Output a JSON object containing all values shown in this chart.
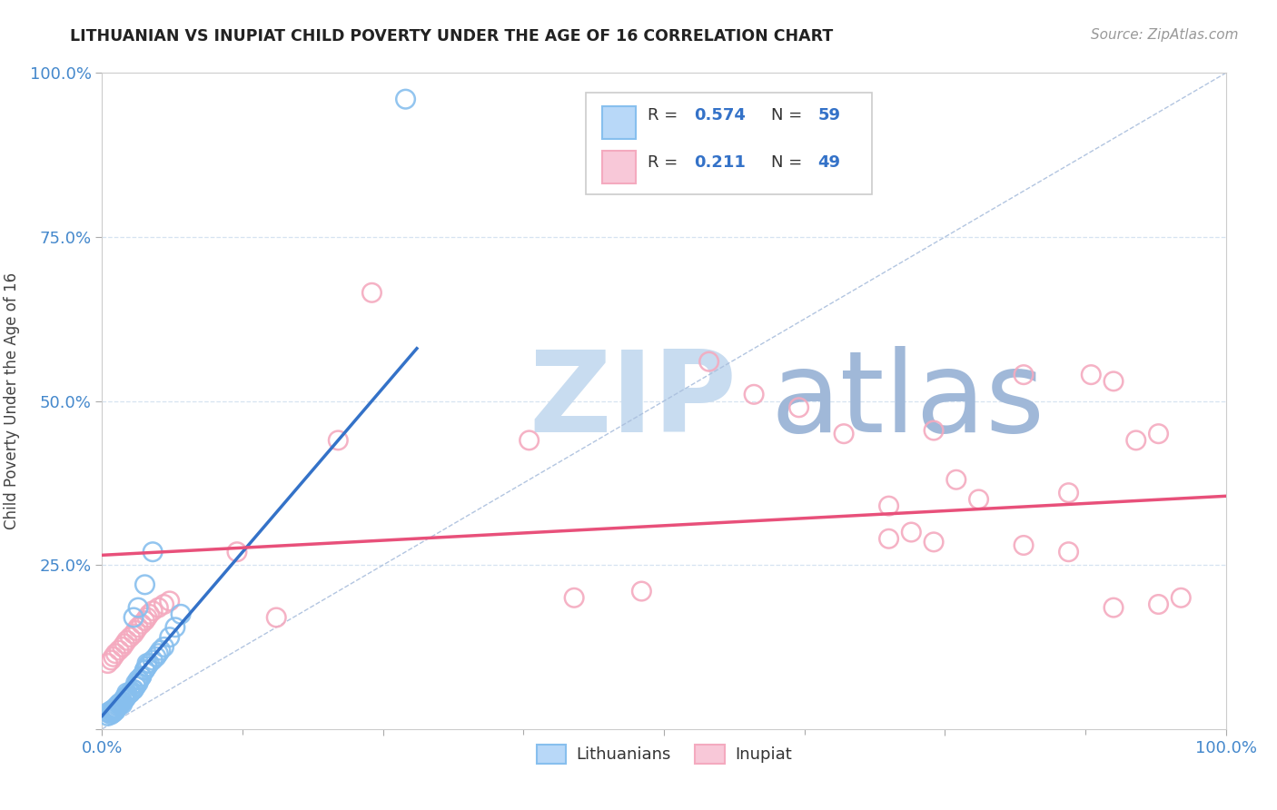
{
  "title": "LITHUANIAN VS INUPIAT CHILD POVERTY UNDER THE AGE OF 16 CORRELATION CHART",
  "source": "Source: ZipAtlas.com",
  "ylabel": "Child Poverty Under the Age of 16",
  "xlim": [
    0.0,
    1.0
  ],
  "ylim": [
    0.0,
    1.0
  ],
  "legend_labels": [
    "Lithuanians",
    "Inupiat"
  ],
  "R_blue": "0.574",
  "N_blue": "59",
  "R_pink": "0.211",
  "N_pink": "49",
  "blue_scatter_color": "#87BFEE",
  "pink_scatter_color": "#F4AABF",
  "blue_line_color": "#3472C8",
  "pink_line_color": "#E8507A",
  "diagonal_color": "#AABFDD",
  "grid_color": "#CCDDEE",
  "tick_color": "#4488CC",
  "watermark_zip": "ZIP",
  "watermark_atlas": "atlas",
  "watermark_color_zip": "#C8DCF0",
  "watermark_color_atlas": "#A0B8D8",
  "blue_x": [
    0.005,
    0.008,
    0.01,
    0.012,
    0.013,
    0.015,
    0.016,
    0.018,
    0.02,
    0.021,
    0.022,
    0.023,
    0.025,
    0.026,
    0.028,
    0.03,
    0.032,
    0.033,
    0.035,
    0.038,
    0.04,
    0.042,
    0.045,
    0.048,
    0.05,
    0.052,
    0.055,
    0.06,
    0.065,
    0.07,
    0.01,
    0.012,
    0.015,
    0.018,
    0.02,
    0.022,
    0.025,
    0.028,
    0.03,
    0.032,
    0.035,
    0.038,
    0.04,
    0.008,
    0.01,
    0.012,
    0.015,
    0.018,
    0.02,
    0.022,
    0.005,
    0.008,
    0.01,
    0.012,
    0.028,
    0.032,
    0.038,
    0.045,
    0.27
  ],
  "blue_y": [
    0.025,
    0.028,
    0.03,
    0.032,
    0.035,
    0.038,
    0.04,
    0.042,
    0.045,
    0.048,
    0.05,
    0.052,
    0.055,
    0.058,
    0.06,
    0.065,
    0.07,
    0.075,
    0.08,
    0.09,
    0.095,
    0.1,
    0.105,
    0.11,
    0.115,
    0.12,
    0.125,
    0.14,
    0.155,
    0.175,
    0.025,
    0.03,
    0.035,
    0.038,
    0.045,
    0.05,
    0.055,
    0.06,
    0.07,
    0.075,
    0.08,
    0.09,
    0.1,
    0.025,
    0.028,
    0.032,
    0.038,
    0.042,
    0.048,
    0.055,
    0.02,
    0.022,
    0.025,
    0.028,
    0.17,
    0.185,
    0.22,
    0.27,
    0.96
  ],
  "pink_x": [
    0.005,
    0.008,
    0.01,
    0.012,
    0.015,
    0.018,
    0.02,
    0.022,
    0.025,
    0.028,
    0.03,
    0.032,
    0.035,
    0.038,
    0.04,
    0.042,
    0.045,
    0.05,
    0.055,
    0.06,
    0.12,
    0.155,
    0.21,
    0.24,
    0.38,
    0.42,
    0.48,
    0.54,
    0.58,
    0.62,
    0.66,
    0.7,
    0.74,
    0.78,
    0.82,
    0.86,
    0.88,
    0.9,
    0.92,
    0.94,
    0.7,
    0.72,
    0.74,
    0.76,
    0.82,
    0.86,
    0.9,
    0.94,
    0.96
  ],
  "pink_y": [
    0.1,
    0.105,
    0.11,
    0.115,
    0.12,
    0.125,
    0.13,
    0.135,
    0.14,
    0.145,
    0.15,
    0.155,
    0.16,
    0.165,
    0.17,
    0.175,
    0.18,
    0.185,
    0.19,
    0.195,
    0.27,
    0.17,
    0.44,
    0.665,
    0.44,
    0.2,
    0.21,
    0.56,
    0.51,
    0.49,
    0.45,
    0.34,
    0.455,
    0.35,
    0.54,
    0.36,
    0.54,
    0.53,
    0.44,
    0.45,
    0.29,
    0.3,
    0.285,
    0.38,
    0.28,
    0.27,
    0.185,
    0.19,
    0.2
  ],
  "blue_line_x0": 0.0,
  "blue_line_y0": 0.02,
  "blue_line_x1": 0.28,
  "blue_line_y1": 0.58,
  "pink_line_x0": 0.0,
  "pink_line_y0": 0.265,
  "pink_line_x1": 1.0,
  "pink_line_y1": 0.355
}
